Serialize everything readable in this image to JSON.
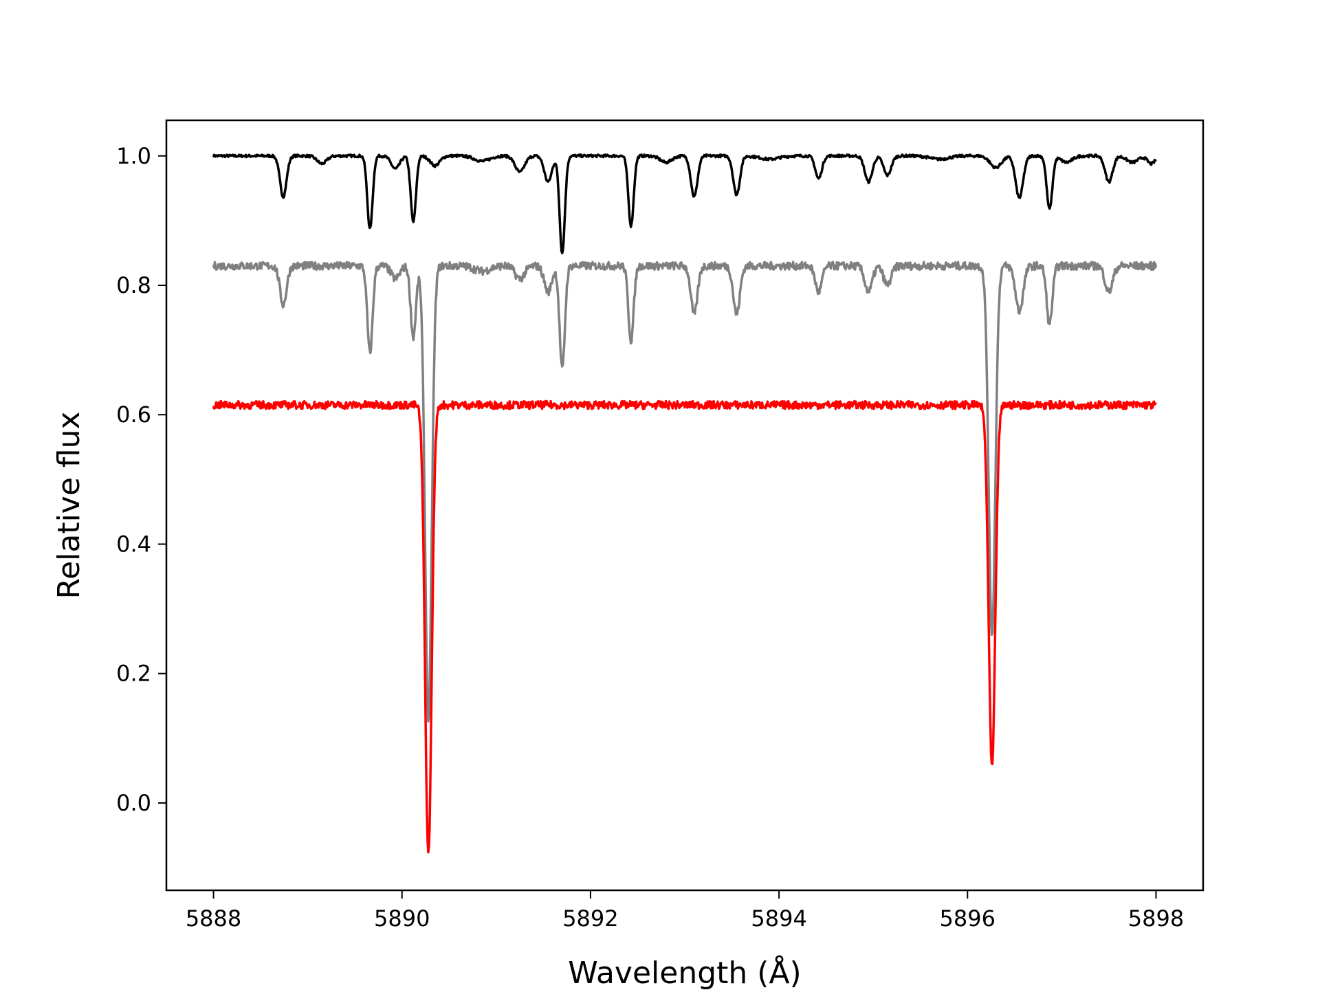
{
  "chart_data": {
    "type": "line",
    "xlabel": "Wavelength (Å)",
    "ylabel": "Relative flux",
    "xlim": [
      5887.5,
      5898.5
    ],
    "ylim": [
      -0.135,
      1.055
    ],
    "x_ticks": [
      "5888",
      "5890",
      "5892",
      "5894",
      "5896",
      "5898"
    ],
    "y_ticks": [
      "0.0",
      "0.2",
      "0.4",
      "0.6",
      "0.8",
      "1.0"
    ],
    "grid": false,
    "legend": "none",
    "x_range": [
      5888,
      5898
    ],
    "series": [
      {
        "color": "#000000",
        "continuum": 1.0,
        "noise": 0.002,
        "lines": [
          [
            5888.74,
            0.063,
            0.035
          ],
          [
            5889.15,
            0.012,
            0.05
          ],
          [
            5889.66,
            0.113,
            0.028
          ],
          [
            5889.93,
            0.02,
            0.045
          ],
          [
            5890.12,
            0.102,
            0.028
          ],
          [
            5890.35,
            0.015,
            0.05
          ],
          [
            5890.85,
            0.008,
            0.08
          ],
          [
            5891.25,
            0.025,
            0.05
          ],
          [
            5891.55,
            0.04,
            0.04
          ],
          [
            5891.7,
            0.15,
            0.028
          ],
          [
            5892.43,
            0.108,
            0.028
          ],
          [
            5892.8,
            0.01,
            0.06
          ],
          [
            5893.1,
            0.063,
            0.035
          ],
          [
            5893.55,
            0.06,
            0.035
          ],
          [
            5893.9,
            0.005,
            0.1
          ],
          [
            5894.42,
            0.035,
            0.035
          ],
          [
            5894.95,
            0.04,
            0.04
          ],
          [
            5895.15,
            0.03,
            0.04
          ],
          [
            5895.7,
            0.005,
            0.1
          ],
          [
            5896.3,
            0.018,
            0.06
          ],
          [
            5896.55,
            0.065,
            0.04
          ],
          [
            5896.87,
            0.082,
            0.03
          ],
          [
            5897.05,
            0.01,
            0.06
          ],
          [
            5897.5,
            0.04,
            0.04
          ],
          [
            5897.75,
            0.01,
            0.06
          ],
          [
            5897.95,
            0.012,
            0.04
          ]
        ]
      },
      {
        "color": "#808080",
        "continuum": 0.83,
        "noise": 0.006,
        "lines": [
          [
            5888.74,
            0.06,
            0.035
          ],
          [
            5889.66,
            0.135,
            0.028
          ],
          [
            5889.93,
            0.02,
            0.045
          ],
          [
            5890.12,
            0.11,
            0.028
          ],
          [
            5890.28,
            0.7,
            0.035
          ],
          [
            5890.85,
            0.008,
            0.08
          ],
          [
            5891.25,
            0.02,
            0.05
          ],
          [
            5891.55,
            0.04,
            0.04
          ],
          [
            5891.7,
            0.16,
            0.028
          ],
          [
            5892.43,
            0.115,
            0.028
          ],
          [
            5893.1,
            0.075,
            0.035
          ],
          [
            5893.55,
            0.075,
            0.035
          ],
          [
            5894.42,
            0.04,
            0.035
          ],
          [
            5894.95,
            0.04,
            0.04
          ],
          [
            5895.15,
            0.03,
            0.04
          ],
          [
            5896.26,
            0.57,
            0.035
          ],
          [
            5896.55,
            0.07,
            0.04
          ],
          [
            5896.87,
            0.09,
            0.03
          ],
          [
            5897.5,
            0.04,
            0.04
          ]
        ]
      },
      {
        "color": "#ff0000",
        "continuum": 0.615,
        "noise": 0.006,
        "lines": [
          [
            5890.28,
            0.695,
            0.035
          ],
          [
            5896.26,
            0.56,
            0.035
          ]
        ]
      }
    ]
  }
}
